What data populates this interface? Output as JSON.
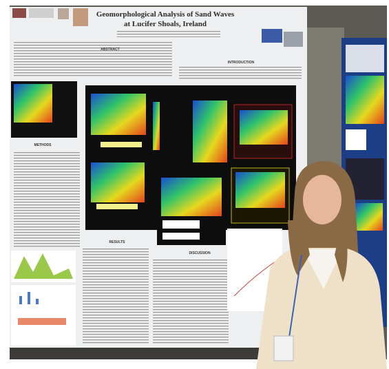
{
  "poster": {
    "title": [
      "Geomorphological Analysis of Sand Waves",
      "at Lucifer Shoals, Ireland"
    ],
    "sections": [
      "ABSTRACT",
      "INTRODUCTION",
      "METHODS",
      "RESULTS",
      "DISCUSSION"
    ]
  }
}
